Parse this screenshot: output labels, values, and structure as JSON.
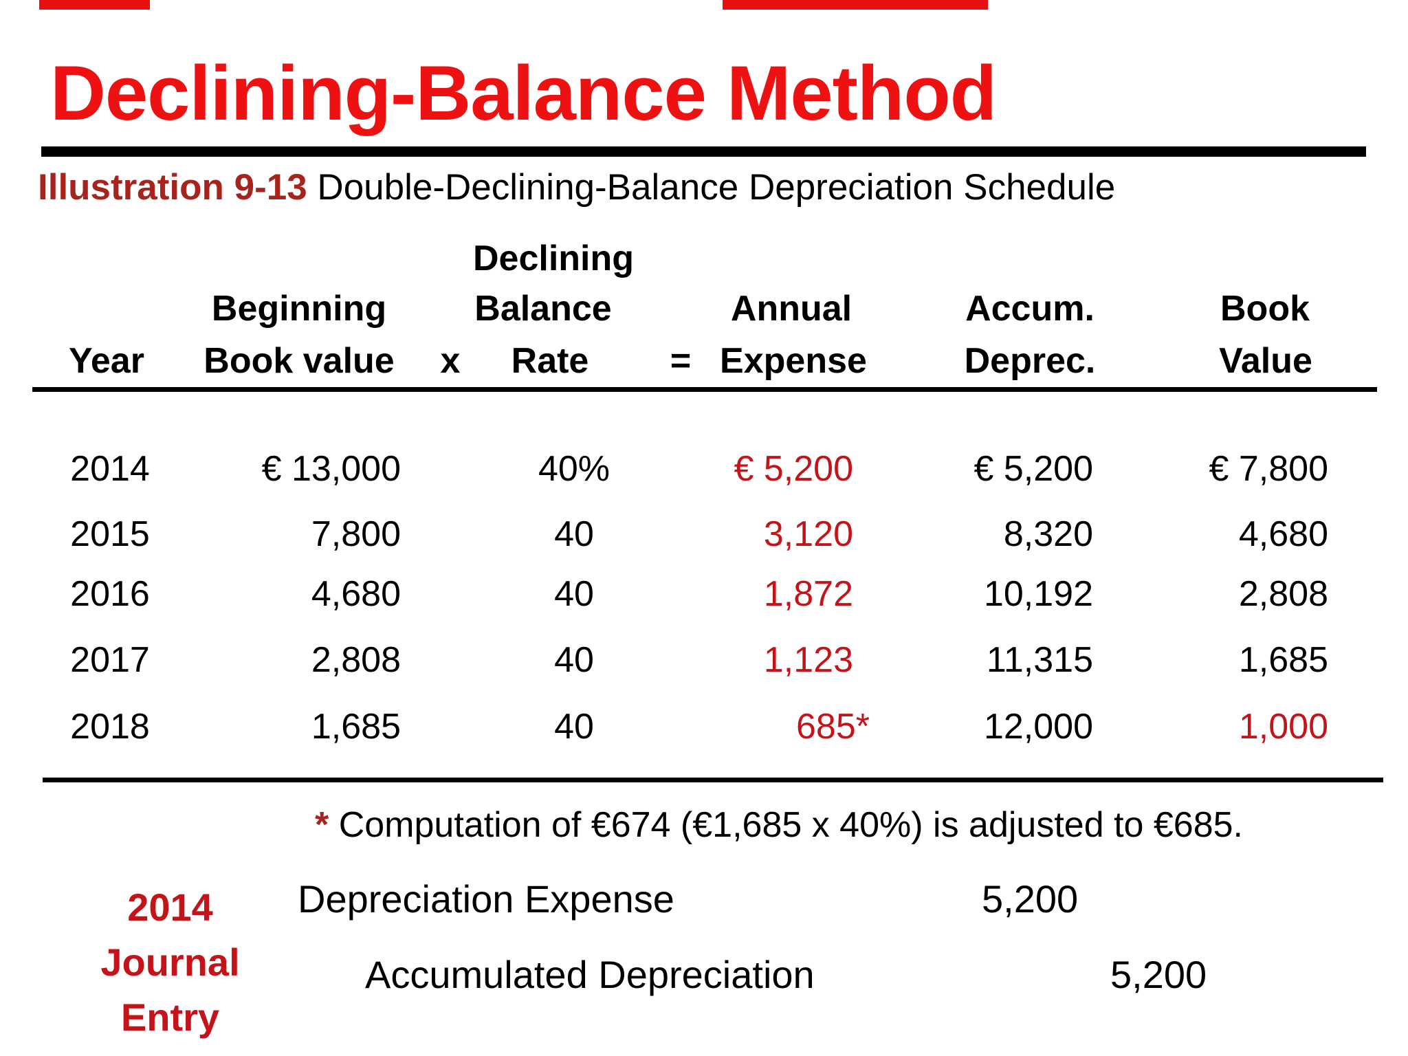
{
  "colors": {
    "title_red": "#EE1111",
    "label_red": "#A6231E",
    "accent_red": "#C41419",
    "strip_red": "#E8100E"
  },
  "title": {
    "text": "Declining-Balance Method"
  },
  "illustration": {
    "label": "Illustration 9-13",
    "text": " Double-Declining-Balance Depreciation Schedule"
  },
  "table": {
    "header": {
      "declining": "Declining",
      "beginning": "Beginning",
      "balance": "Balance",
      "annual": "Annual",
      "accum": "Accum.",
      "book": "Book",
      "year": "Year",
      "book_value": "Book value",
      "x": "x",
      "rate": "Rate",
      "equals": "=",
      "expense": "Expense",
      "deprec": "Deprec.",
      "value": "Value"
    },
    "rows": [
      {
        "year": "2014",
        "beginning_book_value": "€ 13,000",
        "rate": "40%",
        "annual_expense": "€ 5,200",
        "accum_deprec": "€ 5,200",
        "book_value": "€ 7,800"
      },
      {
        "year": "2015",
        "beginning_book_value": "7,800",
        "rate": "40",
        "annual_expense": "3,120",
        "accum_deprec": "8,320",
        "book_value": "4,680"
      },
      {
        "year": "2016",
        "beginning_book_value": "4,680",
        "rate": "40",
        "annual_expense": "1,872",
        "accum_deprec": "10,192",
        "book_value": "2,808"
      },
      {
        "year": "2017",
        "beginning_book_value": "2,808",
        "rate": "40",
        "annual_expense": "1,123",
        "accum_deprec": "11,315",
        "book_value": "1,685"
      },
      {
        "year": "2018",
        "beginning_book_value": "1,685",
        "rate": "40",
        "annual_expense": "685*",
        "accum_deprec": "12,000",
        "book_value": "1,000"
      }
    ]
  },
  "footnote": {
    "asterisk": "*",
    "text": " Computation of €674 (€1,685 x 40%) is adjusted to €685."
  },
  "journal": {
    "label_line1": "2014",
    "label_line2": "Journal",
    "label_line3": "Entry",
    "debit_account": "Depreciation Expense",
    "debit_amount": "5,200",
    "credit_account": "Accumulated Depreciation",
    "credit_amount": "5,200"
  }
}
